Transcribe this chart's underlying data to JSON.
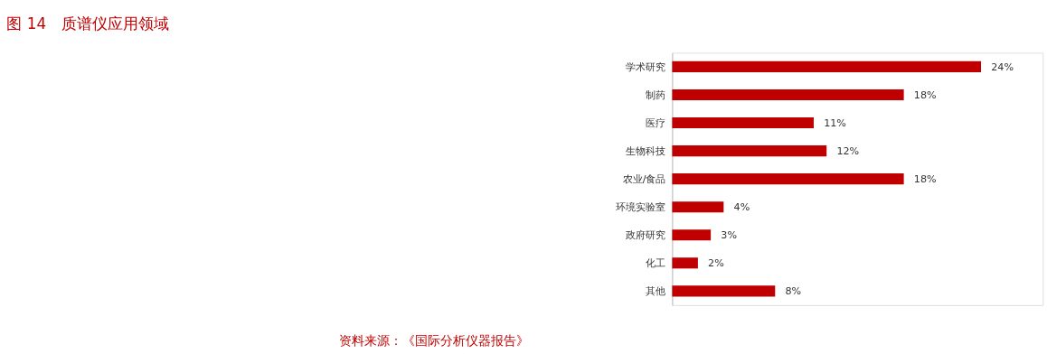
{
  "chart_data": {
    "type": "bar",
    "orientation": "horizontal",
    "title": "图 14　质谱仪应用领域",
    "categories": [
      "学术研究",
      "制药",
      "医疗",
      "生物科技",
      "农业/食品",
      "环境实验室",
      "政府研究",
      "化工",
      "其他"
    ],
    "values": [
      24,
      18,
      11,
      12,
      18,
      4,
      3,
      2,
      8
    ],
    "value_labels": [
      "24%",
      "18%",
      "11%",
      "12%",
      "18%",
      "4%",
      "3%",
      "2%",
      "8%"
    ],
    "color": "#c00000",
    "grid": false,
    "annotations": [
      "资料来源：《国际分析仪器报告》"
    ]
  }
}
